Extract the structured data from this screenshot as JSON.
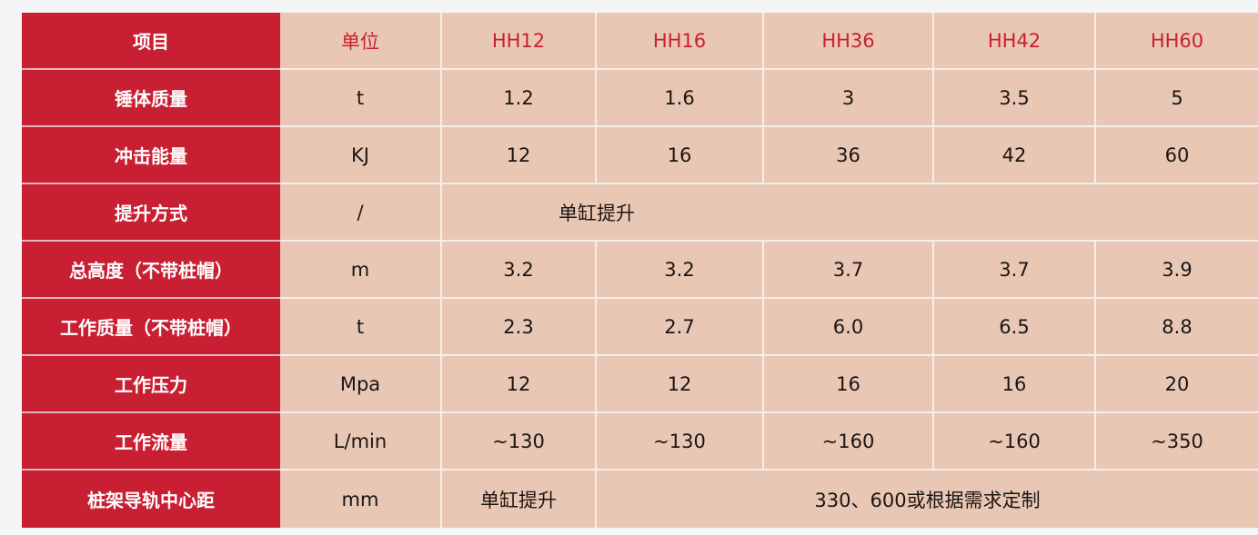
{
  "header": {
    "item": "项目",
    "unit": "单位",
    "models": [
      "HH12",
      "HH16",
      "HH36",
      "HH42",
      "HH60"
    ]
  },
  "rows": [
    {
      "label": "锤体质量",
      "unit": "t",
      "values": [
        "1.2",
        "1.6",
        "3",
        "3.5",
        "5"
      ]
    },
    {
      "label": "冲击能量",
      "unit": "KJ",
      "values": [
        "12",
        "16",
        "36",
        "42",
        "60"
      ]
    },
    {
      "label": "提升方式",
      "unit": "/",
      "merged": "单缸提升"
    },
    {
      "label": "总高度（不带桩帽）",
      "unit": "m",
      "values": [
        "3.2",
        "3.2",
        "3.7",
        "3.7",
        "3.9"
      ]
    },
    {
      "label": "工作质量（不带桩帽）",
      "unit": "t",
      "values": [
        "2.3",
        "2.7",
        "6.0",
        "6.5",
        "8.8"
      ]
    },
    {
      "label": "工作压力",
      "unit": "Mpa",
      "values": [
        "12",
        "12",
        "16",
        "16",
        "20"
      ]
    },
    {
      "label": "工作流量",
      "unit": "L/min",
      "values": [
        "~130",
        "~130",
        "~160",
        "~160",
        "~350"
      ]
    },
    {
      "label": "桩架导轨中心距",
      "unit": "mm",
      "first": "单缸提升",
      "merged": "330、600或根据需求定制"
    }
  ],
  "colors": {
    "label_bg": "#c91f32",
    "cell_bg": "#e8c8b5",
    "header_text": "#c8202f"
  }
}
